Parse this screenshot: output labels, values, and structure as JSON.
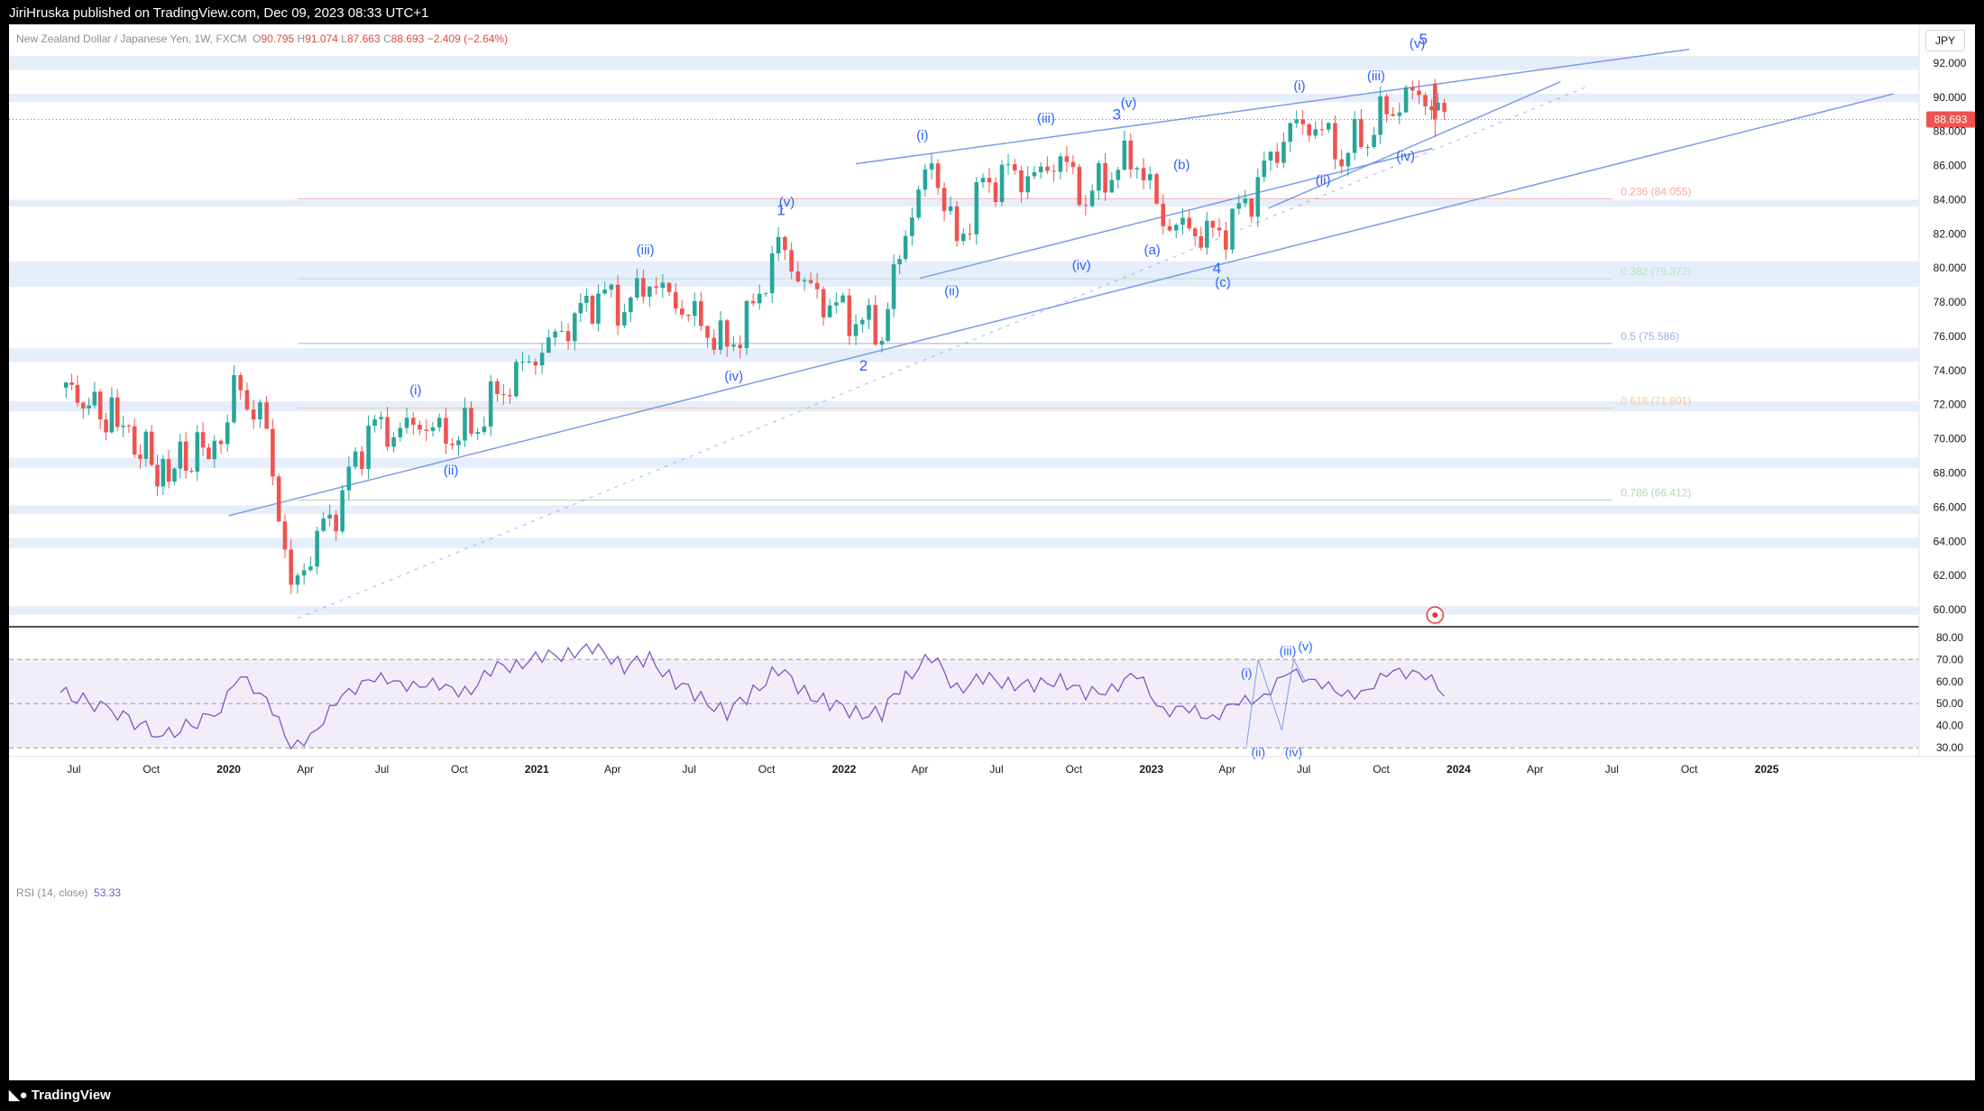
{
  "header": {
    "publisher": "JiriHruska published on TradingView.com, Dec 09, 2023 08:33 UTC+1"
  },
  "legend": {
    "symbol": "New Zealand Dollar / Japanese Yen, 1W, FXCM",
    "o_label": "O",
    "o": "90.795",
    "h_label": "H",
    "h": "91.074",
    "l_label": "L",
    "l": "87.663",
    "c_label": "C",
    "c": "88.693",
    "change": "−2.409 (−2.64%)"
  },
  "currency_button": "JPY",
  "last_price_label": "88.693",
  "rsi_legend": {
    "name": "RSI (14, close)",
    "value": "53.33"
  },
  "footer": {
    "brand": "TradingView"
  },
  "colors": {
    "up": "#26a69a",
    "down": "#ef5350",
    "wave": "#2962ff",
    "trend": "#7c9ce8",
    "rsi": "#7e57c2",
    "zone": "#e6eefc"
  },
  "chart_data": [
    {
      "type": "candlestick",
      "timeframe": "1W",
      "ylim": [
        59,
        94
      ],
      "y_ticks": [
        "92.000",
        "90.000",
        "88.000",
        "86.000",
        "84.000",
        "82.000",
        "80.000",
        "78.000",
        "76.000",
        "74.000",
        "72.000",
        "70.000",
        "68.000",
        "66.000",
        "64.000",
        "62.000",
        "60.000"
      ],
      "x_ticks": [
        "Jul",
        "Oct",
        "2020",
        "Apr",
        "Jul",
        "Oct",
        "2021",
        "Apr",
        "Jul",
        "Oct",
        "2022",
        "Apr",
        "Jul",
        "Oct",
        "2023",
        "Apr",
        "Jul",
        "Oct",
        "2024",
        "Apr",
        "Jul",
        "Oct",
        "2025"
      ],
      "close_path": [
        [
          "2019-06",
          73.0
        ],
        [
          "2019-08",
          71.2
        ],
        [
          "2019-10",
          68.0
        ],
        [
          "2019-12",
          69.8
        ],
        [
          "2020-01",
          73.2
        ],
        [
          "2020-02",
          70.5
        ],
        [
          "2020-03",
          61.0
        ],
        [
          "2020-04",
          64.0
        ],
        [
          "2020-05",
          66.5
        ],
        [
          "2020-06",
          70.6
        ],
        [
          "2020-07",
          70.3
        ],
        [
          "2020-08",
          71.0
        ],
        [
          "2020-09",
          70.2
        ],
        [
          "2020-10",
          70.6
        ],
        [
          "2020-11",
          72.6
        ],
        [
          "2020-12",
          74.2
        ],
        [
          "2021-01",
          75.5
        ],
        [
          "2021-02",
          77.0
        ],
        [
          "2021-03",
          78.4
        ],
        [
          "2021-04",
          77.6
        ],
        [
          "2021-05",
          79.3
        ],
        [
          "2021-06",
          78.0
        ],
        [
          "2021-07",
          76.8
        ],
        [
          "2021-08",
          75.3
        ],
        [
          "2021-09",
          77.6
        ],
        [
          "2021-10",
          81.4
        ],
        [
          "2021-11",
          79.0
        ],
        [
          "2021-12",
          77.8
        ],
        [
          "2022-01",
          77.0
        ],
        [
          "2022-02",
          76.2
        ],
        [
          "2022-03",
          82.3
        ],
        [
          "2022-04",
          86.3
        ],
        [
          "2022-05",
          81.4
        ],
        [
          "2022-06",
          84.8
        ],
        [
          "2022-07",
          85.5
        ],
        [
          "2022-08",
          85.2
        ],
        [
          "2022-09",
          86.5
        ],
        [
          "2022-10",
          84.0
        ],
        [
          "2022-11",
          85.8
        ],
        [
          "2022-12",
          86.5
        ],
        [
          "2023-01",
          82.8
        ],
        [
          "2023-02",
          82.2
        ],
        [
          "2023-03",
          81.8
        ],
        [
          "2023-04",
          83.0
        ],
        [
          "2023-05",
          85.6
        ],
        [
          "2023-06",
          88.2
        ],
        [
          "2023-07",
          88.4
        ],
        [
          "2023-08",
          86.7
        ],
        [
          "2023-09",
          88.0
        ],
        [
          "2023-10",
          89.6
        ],
        [
          "2023-11",
          90.3
        ],
        [
          "2023-12",
          88.693
        ]
      ],
      "last_bar": {
        "open": 90.795,
        "high": 91.074,
        "low": 87.663,
        "close": 88.693
      },
      "fib_levels": [
        {
          "ratio": "0.236",
          "label": "0.236 (84.055)",
          "price": 84.055,
          "color": "#f7a99f"
        },
        {
          "ratio": "0.382",
          "label": "0.382 (79.372)",
          "price": 79.372,
          "color": "#b7e4c0"
        },
        {
          "ratio": "0.5",
          "label": "0.5 (75.586)",
          "price": 75.586,
          "color": "#9bb2e8"
        },
        {
          "ratio": "0.618",
          "label": "0.618 (71.801)",
          "price": 71.801,
          "color": "#f8c99c"
        },
        {
          "ratio": "0.786",
          "label": "0.786 (66.412)",
          "price": 66.412,
          "color": "#a9d8af"
        }
      ],
      "wave_labels": [
        {
          "text": "(i)",
          "date": "2020-08-10",
          "price": 72.6
        },
        {
          "text": "(ii)",
          "date": "2020-09-21",
          "price": 67.9
        },
        {
          "text": "(iii)",
          "date": "2021-05-10",
          "price": 80.8
        },
        {
          "text": "(iv)",
          "date": "2021-08-23",
          "price": 73.4
        },
        {
          "text": "1",
          "date": "2021-10-18",
          "price": 83.1
        },
        {
          "text": "(v)",
          "date": "2021-10-25",
          "price": 83.6
        },
        {
          "text": "2",
          "date": "2022-01-24",
          "price": 74.0
        },
        {
          "text": "(i)",
          "date": "2022-04-04",
          "price": 87.5
        },
        {
          "text": "(ii)",
          "date": "2022-05-09",
          "price": 78.4
        },
        {
          "text": "(iii)",
          "date": "2022-08-29",
          "price": 88.5
        },
        {
          "text": "(iv)",
          "date": "2022-10-10",
          "price": 79.9
        },
        {
          "text": "3",
          "date": "2022-11-21",
          "price": 88.7
        },
        {
          "text": "(v)",
          "date": "2022-12-05",
          "price": 89.4
        },
        {
          "text": "(a)",
          "date": "2023-01-02",
          "price": 80.8
        },
        {
          "text": "(b)",
          "date": "2023-02-06",
          "price": 85.8
        },
        {
          "text": "4",
          "date": "2023-03-20",
          "price": 79.7
        },
        {
          "text": "(c)",
          "date": "2023-03-27",
          "price": 78.9
        },
        {
          "text": "(i)",
          "date": "2023-06-26",
          "price": 90.4
        },
        {
          "text": "(ii)",
          "date": "2023-07-24",
          "price": 84.9
        },
        {
          "text": "(iii)",
          "date": "2023-09-25",
          "price": 91.0
        },
        {
          "text": "(iv)",
          "date": "2023-10-30",
          "price": 86.3
        },
        {
          "text": "(v)",
          "date": "2023-11-13",
          "price": 92.9
        },
        {
          "text": "5",
          "date": "2023-11-20",
          "price": 93.1
        }
      ]
    },
    {
      "type": "line",
      "series": [
        {
          "name": "RSI (14, close)",
          "last": 53.33
        }
      ],
      "ylim": [
        26,
        84
      ],
      "y_ticks": [
        "80.00",
        "70.00",
        "60.00",
        "50.00",
        "40.00",
        "30.00"
      ],
      "bands": [
        70,
        50,
        30
      ],
      "rsi_path": [
        [
          "2019-06",
          55
        ],
        [
          "2019-08",
          47
        ],
        [
          "2019-10",
          35
        ],
        [
          "2019-12",
          45
        ],
        [
          "2020-01",
          61
        ],
        [
          "2020-02",
          54
        ],
        [
          "2020-03",
          28
        ],
        [
          "2020-04",
          40
        ],
        [
          "2020-05",
          52
        ],
        [
          "2020-06",
          63
        ],
        [
          "2020-07",
          58
        ],
        [
          "2020-08",
          60
        ],
        [
          "2020-09",
          56
        ],
        [
          "2020-10",
          57
        ],
        [
          "2020-11",
          66
        ],
        [
          "2020-12",
          69
        ],
        [
          "2021-01",
          71
        ],
        [
          "2021-02",
          74
        ],
        [
          "2021-03",
          75
        ],
        [
          "2021-04",
          67
        ],
        [
          "2021-05",
          70
        ],
        [
          "2021-06",
          60
        ],
        [
          "2021-07",
          52
        ],
        [
          "2021-08",
          46
        ],
        [
          "2021-09",
          55
        ],
        [
          "2021-10",
          66
        ],
        [
          "2021-11",
          55
        ],
        [
          "2021-12",
          50
        ],
        [
          "2022-01",
          46
        ],
        [
          "2022-02",
          45
        ],
        [
          "2022-03",
          62
        ],
        [
          "2022-04",
          71
        ],
        [
          "2022-05",
          57
        ],
        [
          "2022-06",
          61
        ],
        [
          "2022-07",
          60
        ],
        [
          "2022-08",
          57
        ],
        [
          "2022-09",
          62
        ],
        [
          "2022-10",
          53
        ],
        [
          "2022-11",
          58
        ],
        [
          "2022-12",
          62
        ],
        [
          "2023-01",
          48
        ],
        [
          "2023-02",
          46
        ],
        [
          "2023-03",
          45
        ],
        [
          "2023-04",
          49
        ],
        [
          "2023-05",
          55
        ],
        [
          "2023-06",
          63
        ],
        [
          "2023-07",
          62
        ],
        [
          "2023-08",
          52
        ],
        [
          "2023-09",
          58
        ],
        [
          "2023-10",
          63
        ],
        [
          "2023-11",
          66
        ],
        [
          "2023-12",
          53.33
        ]
      ],
      "wave_labels": [
        {
          "text": "(i)",
          "date": "2023-04-24"
        },
        {
          "text": "(ii)",
          "date": "2023-05-08"
        },
        {
          "text": "(iii)",
          "date": "2023-06-12"
        },
        {
          "text": "(iv)",
          "date": "2023-06-19"
        },
        {
          "text": "(v)",
          "date": "2023-07-03"
        }
      ]
    }
  ]
}
